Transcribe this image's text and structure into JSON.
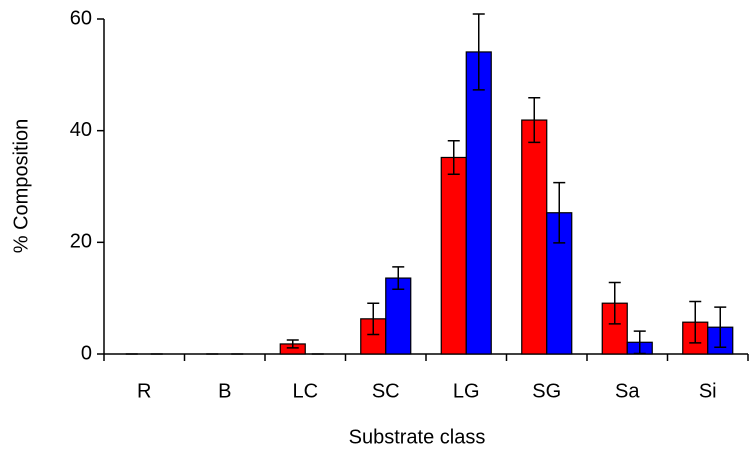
{
  "chart_data": {
    "type": "bar",
    "x_label": "Substrate class",
    "y_label": "% Composition",
    "categories": [
      "R",
      "B",
      "LC",
      "SC",
      "LG",
      "SG",
      "Sa",
      "Si"
    ],
    "series": [
      {
        "color": "#ff0000",
        "values": [
          0,
          0,
          1.8,
          6.3,
          35.2,
          41.9,
          9.1,
          5.7
        ],
        "errors": [
          0,
          0,
          0.7,
          2.8,
          3,
          4,
          3.7,
          3.7
        ]
      },
      {
        "color": "#0000ff",
        "values": [
          0,
          0,
          0,
          13.6,
          54.1,
          25.3,
          2.1,
          4.8
        ],
        "errors": [
          0,
          0,
          0,
          2,
          6.8,
          5.4,
          2,
          3.6
        ]
      }
    ],
    "ylim": [
      0,
      60
    ],
    "yticks": [
      0,
      20,
      40,
      60
    ],
    "grid": false
  }
}
